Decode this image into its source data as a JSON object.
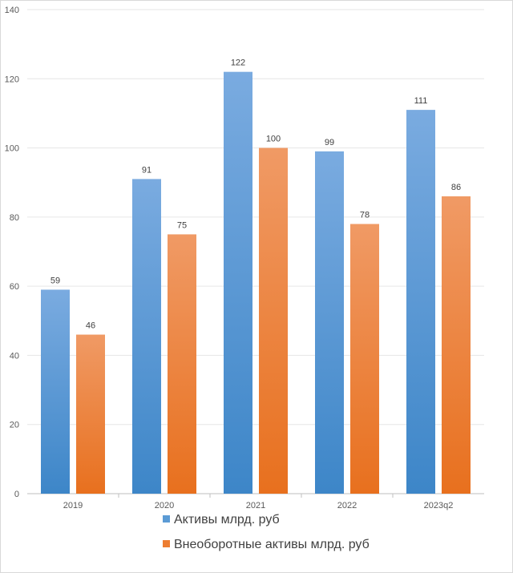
{
  "chart_data": {
    "type": "bar",
    "categories": [
      "2019",
      "2020",
      "2021",
      "2022",
      "2023q2"
    ],
    "series": [
      {
        "name": "Активы млрд. руб",
        "values": [
          59,
          91,
          122,
          99,
          111
        ],
        "color": "#5b9bd5"
      },
      {
        "name": "Внеоборотные активы млрд. руб",
        "values": [
          46,
          75,
          100,
          78,
          86
        ],
        "color": "#ed7d31"
      }
    ],
    "ylim": [
      0,
      140
    ],
    "yticks": [
      0,
      20,
      40,
      60,
      80,
      100,
      120,
      140
    ],
    "grid": true,
    "legend_position": "bottom",
    "data_labels": true
  }
}
